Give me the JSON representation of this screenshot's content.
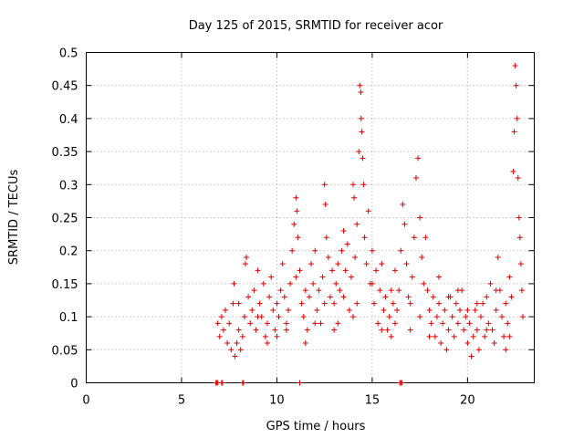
{
  "chart_data": {
    "type": "scatter",
    "title": "Day 125 of 2015, SRMTID for receiver acor",
    "xlabel": "GPS time / hours",
    "ylabel": "SRMTID / TECUs",
    "xlim": [
      0,
      23.5
    ],
    "ylim": [
      0,
      0.5
    ],
    "x_ticks": [
      0,
      5,
      10,
      15,
      20
    ],
    "x_tick_labels": [
      "0",
      "5",
      "10",
      "15",
      "20"
    ],
    "y_ticks": [
      0,
      0.05,
      0.1,
      0.15,
      0.2,
      0.25,
      0.3,
      0.35,
      0.4,
      0.45,
      0.5
    ],
    "y_tick_labels": [
      "0",
      "0.05",
      "0.1",
      "0.15",
      "0.2",
      "0.25",
      "0.3",
      "0.35",
      "0.4",
      "0.45",
      "0.5"
    ],
    "grid": true,
    "marker": "plus",
    "series": [
      {
        "name": "SRMTID",
        "color": "#dd0000",
        "points": [
          [
            6.8,
            0
          ],
          [
            6.85,
            0
          ],
          [
            6.9,
            0
          ],
          [
            7.1,
            0
          ],
          [
            7.15,
            0
          ],
          [
            8.2,
            0
          ],
          [
            8.25,
            0
          ],
          [
            11.2,
            0
          ],
          [
            16.45,
            0
          ],
          [
            16.5,
            0
          ],
          [
            16.55,
            0
          ],
          [
            6.9,
            0.09
          ],
          [
            7.0,
            0.07
          ],
          [
            7.1,
            0.1
          ],
          [
            7.2,
            0.08
          ],
          [
            7.3,
            0.11
          ],
          [
            7.4,
            0.06
          ],
          [
            7.5,
            0.09
          ],
          [
            7.6,
            0.05
          ],
          [
            7.7,
            0.12
          ],
          [
            7.75,
            0.15
          ],
          [
            7.8,
            0.04
          ],
          [
            7.9,
            0.06
          ],
          [
            8.0,
            0.08
          ],
          [
            8.1,
            0.05
          ],
          [
            8.2,
            0.07
          ],
          [
            8.3,
            0.1
          ],
          [
            8.35,
            0.18
          ],
          [
            8.4,
            0.19
          ],
          [
            8.5,
            0.13
          ],
          [
            8.6,
            0.09
          ],
          [
            8.7,
            0.11
          ],
          [
            8.8,
            0.14
          ],
          [
            8.9,
            0.08
          ],
          [
            9.0,
            0.17
          ],
          [
            9.1,
            0.12
          ],
          [
            9.2,
            0.1
          ],
          [
            9.3,
            0.15
          ],
          [
            9.4,
            0.07
          ],
          [
            9.5,
            0.09
          ],
          [
            9.6,
            0.13
          ],
          [
            9.7,
            0.16
          ],
          [
            9.8,
            0.11
          ],
          [
            9.9,
            0.08
          ],
          [
            10.0,
            0.12
          ],
          [
            10.1,
            0.1
          ],
          [
            10.2,
            0.14
          ],
          [
            10.3,
            0.18
          ],
          [
            10.4,
            0.13
          ],
          [
            10.5,
            0.09
          ],
          [
            10.6,
            0.11
          ],
          [
            10.7,
            0.15
          ],
          [
            10.8,
            0.2
          ],
          [
            10.9,
            0.24
          ],
          [
            11.0,
            0.28
          ],
          [
            11.05,
            0.26
          ],
          [
            11.1,
            0.22
          ],
          [
            11.2,
            0.17
          ],
          [
            11.3,
            0.12
          ],
          [
            11.4,
            0.1
          ],
          [
            11.5,
            0.06
          ],
          [
            11.6,
            0.08
          ],
          [
            11.7,
            0.13
          ],
          [
            11.8,
            0.18
          ],
          [
            11.9,
            0.15
          ],
          [
            12.0,
            0.2
          ],
          [
            12.1,
            0.11
          ],
          [
            12.2,
            0.14
          ],
          [
            12.3,
            0.09
          ],
          [
            12.4,
            0.16
          ],
          [
            12.5,
            0.3
          ],
          [
            12.55,
            0.27
          ],
          [
            12.6,
            0.22
          ],
          [
            12.7,
            0.19
          ],
          [
            12.8,
            0.13
          ],
          [
            12.9,
            0.17
          ],
          [
            13.0,
            0.12
          ],
          [
            13.1,
            0.15
          ],
          [
            13.2,
            0.18
          ],
          [
            13.3,
            0.14
          ],
          [
            13.4,
            0.2
          ],
          [
            13.5,
            0.23
          ],
          [
            13.6,
            0.17
          ],
          [
            13.7,
            0.21
          ],
          [
            13.8,
            0.11
          ],
          [
            13.9,
            0.16
          ],
          [
            14.0,
            0.3
          ],
          [
            14.05,
            0.28
          ],
          [
            14.1,
            0.19
          ],
          [
            14.2,
            0.24
          ],
          [
            14.3,
            0.35
          ],
          [
            14.35,
            0.45
          ],
          [
            14.4,
            0.44
          ],
          [
            14.42,
            0.4
          ],
          [
            14.45,
            0.38
          ],
          [
            14.5,
            0.34
          ],
          [
            14.55,
            0.3
          ],
          [
            14.6,
            0.22
          ],
          [
            14.7,
            0.18
          ],
          [
            14.8,
            0.26
          ],
          [
            14.9,
            0.15
          ],
          [
            15.0,
            0.2
          ],
          [
            15.1,
            0.12
          ],
          [
            15.2,
            0.17
          ],
          [
            15.3,
            0.09
          ],
          [
            15.4,
            0.14
          ],
          [
            15.5,
            0.18
          ],
          [
            15.6,
            0.11
          ],
          [
            15.7,
            0.13
          ],
          [
            15.8,
            0.08
          ],
          [
            15.9,
            0.1
          ],
          [
            16.0,
            0.07
          ],
          [
            16.1,
            0.12
          ],
          [
            16.2,
            0.09
          ],
          [
            16.3,
            0.11
          ],
          [
            16.4,
            0.14
          ],
          [
            16.5,
            0.2
          ],
          [
            16.6,
            0.27
          ],
          [
            16.7,
            0.24
          ],
          [
            16.8,
            0.18
          ],
          [
            16.9,
            0.13
          ],
          [
            17.0,
            0.08
          ],
          [
            17.1,
            0.16
          ],
          [
            17.2,
            0.22
          ],
          [
            17.3,
            0.31
          ],
          [
            17.4,
            0.34
          ],
          [
            17.5,
            0.25
          ],
          [
            17.6,
            0.19
          ],
          [
            17.7,
            0.15
          ],
          [
            17.8,
            0.22
          ],
          [
            17.9,
            0.14
          ],
          [
            18.0,
            0.11
          ],
          [
            18.1,
            0.09
          ],
          [
            18.2,
            0.13
          ],
          [
            18.3,
            0.07
          ],
          [
            18.4,
            0.1
          ],
          [
            18.5,
            0.12
          ],
          [
            18.6,
            0.06
          ],
          [
            18.7,
            0.09
          ],
          [
            18.8,
            0.11
          ],
          [
            18.9,
            0.05
          ],
          [
            19.0,
            0.08
          ],
          [
            19.1,
            0.13
          ],
          [
            19.2,
            0.1
          ],
          [
            19.3,
            0.07
          ],
          [
            19.4,
            0.12
          ],
          [
            19.5,
            0.09
          ],
          [
            19.6,
            0.11
          ],
          [
            19.7,
            0.14
          ],
          [
            19.8,
            0.08
          ],
          [
            19.9,
            0.1
          ],
          [
            20.0,
            0.06
          ],
          [
            20.1,
            0.09
          ],
          [
            20.2,
            0.04
          ],
          [
            20.3,
            0.07
          ],
          [
            20.4,
            0.11
          ],
          [
            20.5,
            0.08
          ],
          [
            20.6,
            0.05
          ],
          [
            20.7,
            0.1
          ],
          [
            20.8,
            0.12
          ],
          [
            20.9,
            0.07
          ],
          [
            21.0,
            0.13
          ],
          [
            21.1,
            0.09
          ],
          [
            21.2,
            0.15
          ],
          [
            21.3,
            0.08
          ],
          [
            21.4,
            0.06
          ],
          [
            21.5,
            0.11
          ],
          [
            21.6,
            0.19
          ],
          [
            21.7,
            0.14
          ],
          [
            21.8,
            0.1
          ],
          [
            21.9,
            0.07
          ],
          [
            22.0,
            0.12
          ],
          [
            22.1,
            0.09
          ],
          [
            22.2,
            0.16
          ],
          [
            22.3,
            0.13
          ],
          [
            22.4,
            0.32
          ],
          [
            22.45,
            0.38
          ],
          [
            22.5,
            0.48
          ],
          [
            22.55,
            0.45
          ],
          [
            22.6,
            0.4
          ],
          [
            22.65,
            0.31
          ],
          [
            22.7,
            0.25
          ],
          [
            22.75,
            0.22
          ],
          [
            22.8,
            0.18
          ],
          [
            22.85,
            0.14
          ],
          [
            22.9,
            0.1
          ],
          [
            9.5,
            0.06
          ],
          [
            10.5,
            0.08
          ],
          [
            11.5,
            0.14
          ],
          [
            12.0,
            0.09
          ],
          [
            13.0,
            0.08
          ],
          [
            13.5,
            0.13
          ],
          [
            14.0,
            0.1
          ],
          [
            15.0,
            0.15
          ],
          [
            16.0,
            0.14
          ],
          [
            17.0,
            0.12
          ],
          [
            18.0,
            0.07
          ],
          [
            19.0,
            0.13
          ],
          [
            20.0,
            0.11
          ],
          [
            21.0,
            0.08
          ],
          [
            22.0,
            0.05
          ],
          [
            8.0,
            0.12
          ],
          [
            9.0,
            0.1
          ],
          [
            10.0,
            0.07
          ],
          [
            11.0,
            0.16
          ],
          [
            12.5,
            0.12
          ],
          [
            13.2,
            0.09
          ],
          [
            14.2,
            0.12
          ],
          [
            15.5,
            0.08
          ],
          [
            16.2,
            0.17
          ],
          [
            17.5,
            0.1
          ],
          [
            18.5,
            0.16
          ],
          [
            19.5,
            0.14
          ],
          [
            20.5,
            0.12
          ],
          [
            21.5,
            0.14
          ],
          [
            22.2,
            0.07
          ]
        ]
      }
    ]
  }
}
